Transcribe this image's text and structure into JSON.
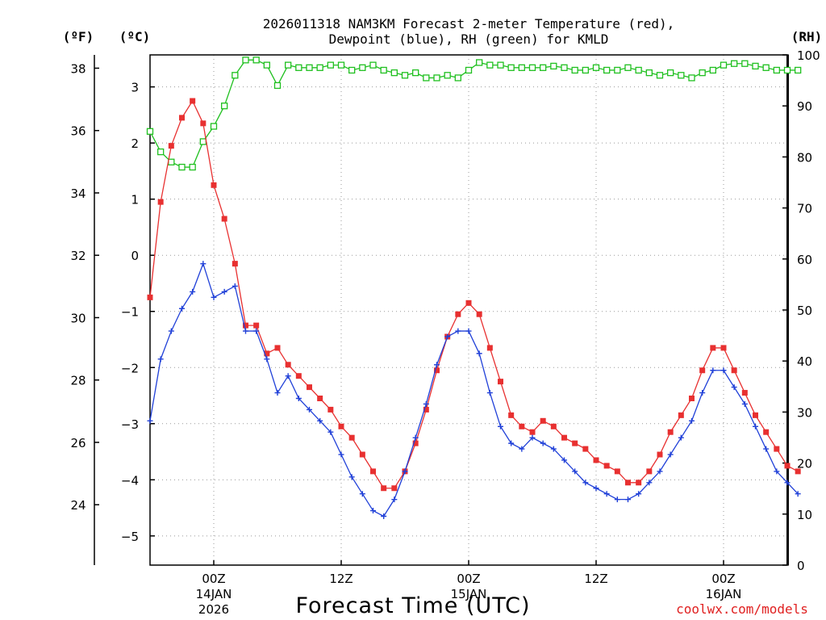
{
  "chart_data": {
    "type": "line",
    "title_line1": "2026011318 NAM3KM Forecast 2-meter Temperature (red),",
    "title_line2": "Dewpoint (blue), RH (green) for KMLD",
    "left_axis_label": "(ºF)",
    "celsius_axis_label": "(ºC)",
    "right_axis_label": "(RH)",
    "xlabel": "Forecast Time (UTC)",
    "watermark": "coolwx.com/models",
    "fahrenheit_ticks": [
      "24",
      "26",
      "28",
      "30",
      "32",
      "34",
      "36",
      "38"
    ],
    "celsius_ticks": [
      "-5",
      "-4",
      "-3",
      "-2",
      "-1",
      "0",
      "1",
      "2",
      "3"
    ],
    "rh_ticks": [
      "0",
      "10",
      "20",
      "30",
      "40",
      "50",
      "60",
      "70",
      "80",
      "90",
      "100"
    ],
    "x_ticks": [
      {
        "hour": 6,
        "label": "00Z",
        "date": "14JAN",
        "year": "2026"
      },
      {
        "hour": 18,
        "label": "12Z",
        "date": "",
        "year": ""
      },
      {
        "hour": 30,
        "label": "00Z",
        "date": "15JAN",
        "year": ""
      },
      {
        "hour": 42,
        "label": "12Z",
        "date": "",
        "year": ""
      },
      {
        "hour": 54,
        "label": "00Z",
        "date": "16JAN",
        "year": ""
      }
    ],
    "x_range_hours": [
      0,
      60
    ],
    "celsius_range": [
      -5.52,
      3.57
    ],
    "rh_range": [
      0,
      100
    ],
    "series": [
      {
        "name": "Temperature (red)",
        "unit": "C",
        "color": "#e83030",
        "marker": "filled-square",
        "values": [
          -0.75,
          0.95,
          1.95,
          2.45,
          2.75,
          2.35,
          1.25,
          0.65,
          -0.15,
          -1.25,
          -1.25,
          -1.75,
          -1.65,
          -1.95,
          -2.15,
          -2.35,
          -2.55,
          -2.75,
          -3.05,
          -3.25,
          -3.55,
          -3.85,
          -4.15,
          -4.15,
          -3.85,
          -3.35,
          -2.75,
          -2.05,
          -1.45,
          -1.05,
          -0.85,
          -1.05,
          -1.65,
          -2.25,
          -2.85,
          -3.05,
          -3.15,
          -2.95,
          -3.05,
          -3.25,
          -3.35,
          -3.45,
          -3.65,
          -3.75,
          -3.85,
          -4.05,
          -4.05,
          -3.85,
          -3.55,
          -3.15,
          -2.85,
          -2.55,
          -2.05,
          -1.65,
          -1.65,
          -2.05,
          -2.45,
          -2.85,
          -3.15,
          -3.45,
          -3.75,
          -3.85
        ]
      },
      {
        "name": "Dewpoint (blue)",
        "unit": "C",
        "color": "#2040d8",
        "marker": "plus",
        "values": [
          -2.95,
          -1.85,
          -1.35,
          -0.95,
          -0.65,
          -0.15,
          -0.75,
          -0.65,
          -0.55,
          -1.35,
          -1.35,
          -1.85,
          -2.45,
          -2.15,
          -2.55,
          -2.75,
          -2.95,
          -3.15,
          -3.55,
          -3.95,
          -4.25,
          -4.55,
          -4.65,
          -4.35,
          -3.85,
          -3.25,
          -2.65,
          -1.95,
          -1.45,
          -1.35,
          -1.35,
          -1.75,
          -2.45,
          -3.05,
          -3.35,
          -3.45,
          -3.25,
          -3.35,
          -3.45,
          -3.65,
          -3.85,
          -4.05,
          -4.15,
          -4.25,
          -4.35,
          -4.35,
          -4.25,
          -4.05,
          -3.85,
          -3.55,
          -3.25,
          -2.95,
          -2.45,
          -2.05,
          -2.05,
          -2.35,
          -2.65,
          -3.05,
          -3.45,
          -3.85,
          -4.05,
          -4.25
        ]
      },
      {
        "name": "RH (green)",
        "unit": "%",
        "color": "#20c020",
        "marker": "open-square",
        "values": [
          85,
          81,
          79,
          78,
          78,
          83,
          86,
          90,
          96,
          99,
          99,
          98,
          94,
          98,
          97.5,
          97.5,
          97.5,
          98,
          98,
          97,
          97.5,
          98,
          97,
          96.5,
          96,
          96.5,
          95.5,
          95.5,
          96,
          95.5,
          97,
          98.5,
          98,
          98,
          97.5,
          97.5,
          97.5,
          97.5,
          97.8,
          97.5,
          97,
          97,
          97.5,
          97,
          97,
          97.5,
          97,
          96.5,
          96,
          96.5,
          96,
          95.5,
          96.5,
          97,
          98,
          98.3,
          98.3,
          97.8,
          97.5,
          97,
          97,
          97
        ]
      }
    ]
  }
}
